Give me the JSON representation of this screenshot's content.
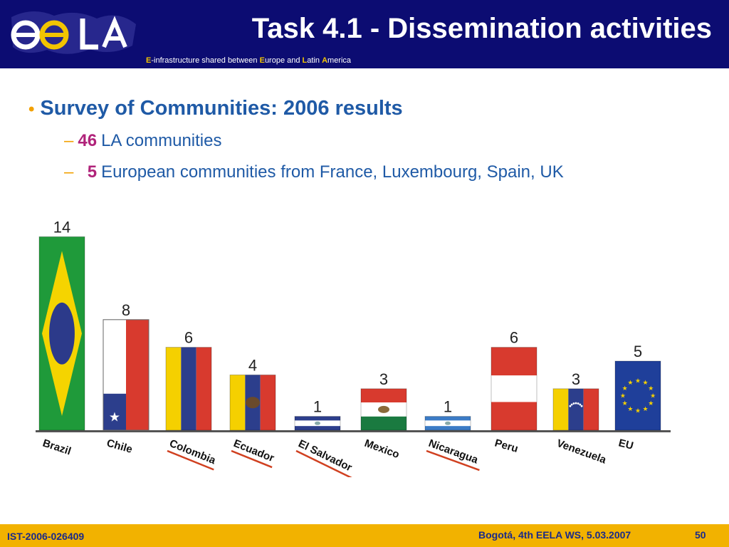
{
  "header": {
    "title": "Task 4.1 - Dissemination activities",
    "subtitle_parts": [
      {
        "text": "E",
        "hl": true
      },
      {
        "text": "-infrastructure shared between ",
        "hl": false
      },
      {
        "text": "E",
        "hl": true
      },
      {
        "text": "urope and ",
        "hl": false
      },
      {
        "text": "L",
        "hl": true
      },
      {
        "text": "atin ",
        "hl": false
      },
      {
        "text": "A",
        "hl": true
      },
      {
        "text": "merica",
        "hl": false
      }
    ],
    "logo": "eela-logo"
  },
  "content": {
    "heading": "Survey of Communities: 2006 results",
    "items": [
      {
        "number": "46",
        "text": "LA communities"
      },
      {
        "number": "5",
        "text": "European communities from France, Luxembourg, Spain, UK"
      }
    ]
  },
  "chart_data": {
    "type": "bar",
    "categories": [
      "Brazil",
      "Chile",
      "Colombia",
      "Ecuador",
      "El Salvador",
      "Mexico",
      "Nicaragua",
      "Peru",
      "Venezuela",
      "EU"
    ],
    "values": [
      14,
      8,
      6,
      4,
      1,
      3,
      1,
      6,
      3,
      5
    ],
    "underlined": [
      "Colombia",
      "Ecuador",
      "El Salvador",
      "Nicaragua"
    ],
    "bar_fill": "country flags",
    "ylim": [
      0,
      14
    ]
  },
  "footer": {
    "left": "IST-2006-026409",
    "center": "Bogotá, 4th EELA WS, 5.03.2007",
    "page": "50"
  },
  "colors": {
    "header_bg": "#0c0c72",
    "footer_bg": "#f2b200",
    "text_blue": "#1f5aa6",
    "accent_orange": "#f2a000",
    "number_magenta": "#b0237a",
    "underline": "#d04020"
  }
}
